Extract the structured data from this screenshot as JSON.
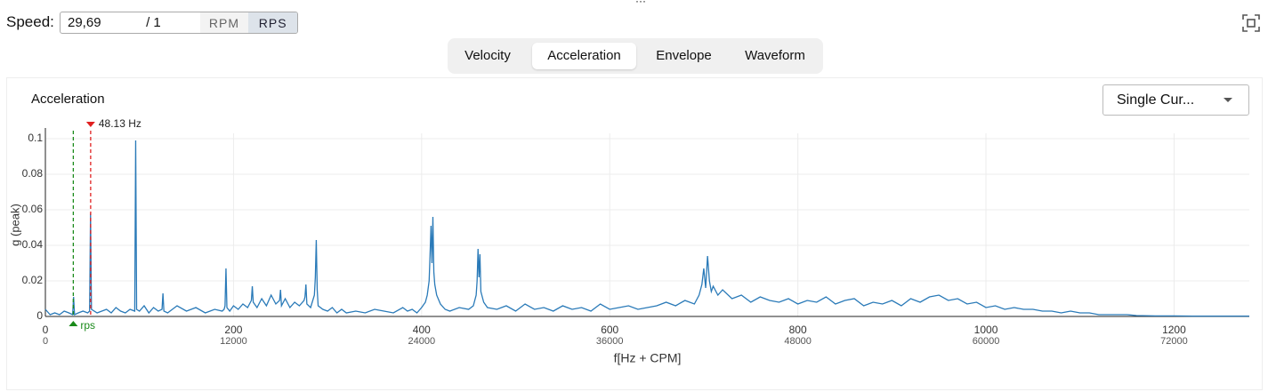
{
  "speed": {
    "label": "Speed:",
    "value": "29,69",
    "divisor": "/ 1",
    "units": [
      "RPM",
      "RPS"
    ],
    "active_unit": 1
  },
  "tabs": {
    "items": [
      "Velocity",
      "Acceleration",
      "Envelope",
      "Waveform"
    ],
    "active": 1
  },
  "dropdown": {
    "label": "Single Cur..."
  },
  "chart_data": {
    "type": "line",
    "title": "Acceleration",
    "xlabel": "f[Hz + CPM]",
    "ylabel": "g (peak)",
    "xlim": [
      0,
      1280
    ],
    "xticks": [
      0,
      200,
      400,
      600,
      800,
      1000,
      1200
    ],
    "x2lim": [
      0,
      76800
    ],
    "x2ticks": [
      0,
      12000,
      24000,
      36000,
      48000,
      60000,
      72000
    ],
    "ylim": [
      0,
      0.103
    ],
    "yticks": [
      0,
      0.02,
      0.04,
      0.06,
      0.08,
      0.1
    ],
    "grid": true,
    "markers": [
      {
        "x": 29.69,
        "label": "rps",
        "color": "#1a8a1a"
      },
      {
        "x": 48.13,
        "label": "48.13 Hz",
        "color": "#e02020"
      }
    ],
    "x": [
      0,
      5,
      10,
      15,
      20,
      25,
      29,
      30,
      31,
      35,
      40,
      45,
      47,
      48,
      49,
      55,
      60,
      65,
      70,
      75,
      80,
      85,
      90,
      95,
      96,
      97,
      100,
      105,
      110,
      115,
      120,
      124,
      125,
      126,
      130,
      140,
      150,
      160,
      170,
      180,
      188,
      190,
      191,
      192,
      193,
      196,
      200,
      205,
      210,
      215,
      219,
      220,
      221,
      225,
      230,
      235,
      240,
      245,
      249,
      250,
      251,
      255,
      260,
      265,
      270,
      275,
      276,
      277,
      278,
      282,
      286,
      287,
      288,
      289,
      290,
      295,
      300,
      305,
      310,
      315,
      320,
      330,
      340,
      350,
      360,
      370,
      380,
      385,
      390,
      395,
      400,
      404,
      406,
      408,
      409,
      410,
      411,
      412,
      413,
      414,
      416,
      420,
      425,
      430,
      440,
      450,
      455,
      458,
      459,
      460,
      461,
      462,
      463,
      466,
      470,
      480,
      490,
      500,
      510,
      520,
      530,
      540,
      550,
      560,
      570,
      580,
      590,
      600,
      610,
      620,
      630,
      640,
      650,
      660,
      670,
      680,
      690,
      695,
      698,
      700,
      702,
      704,
      706,
      708,
      710,
      715,
      720,
      730,
      740,
      750,
      760,
      770,
      780,
      790,
      800,
      810,
      820,
      830,
      840,
      850,
      860,
      870,
      880,
      890,
      900,
      910,
      920,
      930,
      940,
      950,
      960,
      970,
      980,
      990,
      1000,
      1010,
      1020,
      1030,
      1040,
      1050,
      1060,
      1070,
      1080,
      1090,
      1100,
      1110,
      1120,
      1130,
      1140,
      1150,
      1160,
      1180,
      1200,
      1220,
      1240,
      1260,
      1280
    ],
    "series": [
      {
        "color": "#2a7ab8",
        "values": [
          0.004,
          0.001,
          0.002,
          0.001,
          0.003,
          0.002,
          0.001,
          0.011,
          0.001,
          0.002,
          0.003,
          0.002,
          0.003,
          0.058,
          0.004,
          0.002,
          0.003,
          0.004,
          0.002,
          0.005,
          0.003,
          0.002,
          0.004,
          0.003,
          0.099,
          0.004,
          0.003,
          0.006,
          0.002,
          0.005,
          0.003,
          0.004,
          0.013,
          0.003,
          0.002,
          0.006,
          0.003,
          0.005,
          0.002,
          0.004,
          0.003,
          0.004,
          0.006,
          0.027,
          0.005,
          0.003,
          0.006,
          0.004,
          0.007,
          0.005,
          0.009,
          0.017,
          0.008,
          0.005,
          0.01,
          0.006,
          0.012,
          0.007,
          0.009,
          0.015,
          0.006,
          0.01,
          0.005,
          0.008,
          0.006,
          0.009,
          0.011,
          0.018,
          0.007,
          0.005,
          0.012,
          0.022,
          0.043,
          0.015,
          0.006,
          0.004,
          0.003,
          0.005,
          0.002,
          0.004,
          0.002,
          0.003,
          0.002,
          0.004,
          0.003,
          0.002,
          0.005,
          0.003,
          0.004,
          0.002,
          0.005,
          0.008,
          0.012,
          0.02,
          0.035,
          0.051,
          0.03,
          0.056,
          0.025,
          0.018,
          0.012,
          0.007,
          0.004,
          0.003,
          0.005,
          0.004,
          0.006,
          0.012,
          0.02,
          0.038,
          0.022,
          0.035,
          0.014,
          0.008,
          0.005,
          0.004,
          0.006,
          0.003,
          0.007,
          0.004,
          0.005,
          0.003,
          0.006,
          0.004,
          0.005,
          0.003,
          0.007,
          0.004,
          0.005,
          0.006,
          0.004,
          0.005,
          0.006,
          0.008,
          0.006,
          0.009,
          0.007,
          0.012,
          0.018,
          0.027,
          0.016,
          0.034,
          0.02,
          0.014,
          0.017,
          0.012,
          0.015,
          0.01,
          0.012,
          0.008,
          0.011,
          0.009,
          0.008,
          0.01,
          0.007,
          0.009,
          0.008,
          0.011,
          0.007,
          0.009,
          0.01,
          0.006,
          0.008,
          0.007,
          0.009,
          0.006,
          0.01,
          0.008,
          0.011,
          0.012,
          0.009,
          0.01,
          0.007,
          0.008,
          0.005,
          0.006,
          0.004,
          0.005,
          0.004,
          0.004,
          0.003,
          0.003,
          0.002,
          0.003,
          0.002,
          0.002,
          0.001,
          0.001,
          0.001,
          0.001,
          0.0005,
          0.0003,
          0.0003,
          0.0002,
          0.0002,
          0.0002,
          0.0002
        ]
      }
    ]
  }
}
